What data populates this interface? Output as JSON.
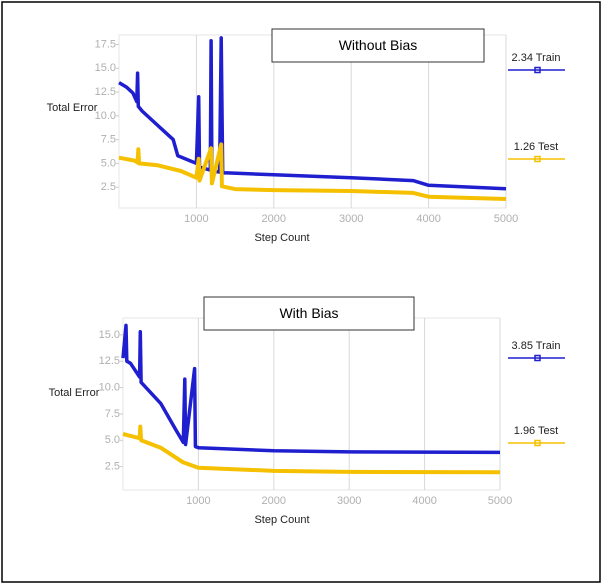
{
  "chart_data": [
    {
      "type": "line",
      "title": "Without Bias",
      "x_label": "Step Count",
      "y_label": "Total Error",
      "xlim": [
        0,
        5000
      ],
      "ylim": [
        0,
        18.5
      ],
      "xticks": [
        1000,
        2000,
        3000,
        4000,
        5000
      ],
      "yticks": [
        2.5,
        {
          "value": 5,
          "label": "5.0"
        },
        7.5,
        {
          "value": 10,
          "label": "10.0"
        },
        12.5,
        {
          "value": 15,
          "label": "15.0"
        },
        17.5
      ],
      "grid": true,
      "series": [
        {
          "name": "2.34 Train",
          "color": "#1f1fd0",
          "x": [
            0,
            100,
            180,
            230,
            240,
            250,
            300,
            500,
            700,
            760,
            1000,
            1030,
            1040,
            1180,
            1190,
            1200,
            1300,
            1320,
            1340,
            1400,
            2000,
            3000,
            3800,
            4000,
            5000
          ],
          "values": [
            13.5,
            13.0,
            12.4,
            11.5,
            14.5,
            11.0,
            10.5,
            9.0,
            7.5,
            5.8,
            5.0,
            12.0,
            4.6,
            4.3,
            17.9,
            4.2,
            4.1,
            18.2,
            4.0,
            4.0,
            3.8,
            3.5,
            3.2,
            2.7,
            2.34
          ]
        },
        {
          "name": "1.26 Test",
          "color": "#f5c000",
          "x": [
            0,
            200,
            240,
            250,
            260,
            500,
            800,
            1000,
            1030,
            1040,
            1190,
            1200,
            1320,
            1330,
            1500,
            2000,
            3000,
            3800,
            4000,
            5000
          ],
          "values": [
            5.6,
            5.3,
            5.1,
            6.5,
            5.0,
            4.8,
            4.2,
            3.5,
            5.5,
            3.2,
            6.6,
            2.9,
            7.0,
            2.6,
            2.3,
            2.2,
            2.1,
            1.9,
            1.5,
            1.26
          ]
        }
      ]
    },
    {
      "type": "line",
      "title": "With Bias",
      "x_label": "Step Count",
      "y_label": "Total Error",
      "xlim": [
        0,
        5000
      ],
      "ylim": [
        0,
        16.6
      ],
      "xticks": [
        1000,
        2000,
        3000,
        4000,
        5000
      ],
      "yticks": [
        2.5,
        {
          "value": 5,
          "label": "5.0"
        },
        7.5,
        {
          "value": 10,
          "label": "10.0"
        },
        12.5,
        {
          "value": 15,
          "label": "15.0"
        }
      ],
      "grid": true,
      "series": [
        {
          "name": "3.85 Train",
          "color": "#1f1fd0",
          "x": [
            0,
            40,
            50,
            100,
            220,
            230,
            240,
            500,
            700,
            800,
            820,
            830,
            950,
            960,
            1000,
            2000,
            3000,
            5000
          ],
          "values": [
            12.8,
            15.9,
            12.5,
            12.3,
            11.0,
            15.3,
            10.5,
            8.5,
            6.0,
            4.8,
            10.8,
            4.6,
            11.8,
            4.4,
            4.3,
            4.0,
            3.9,
            3.85
          ]
        },
        {
          "name": "1.96 Test",
          "color": "#f5c000",
          "x": [
            0,
            220,
            230,
            240,
            500,
            800,
            1000,
            2000,
            3000,
            5000
          ],
          "values": [
            5.6,
            5.2,
            6.3,
            5.0,
            4.3,
            2.9,
            2.4,
            2.1,
            2.0,
            1.96
          ]
        }
      ]
    }
  ]
}
